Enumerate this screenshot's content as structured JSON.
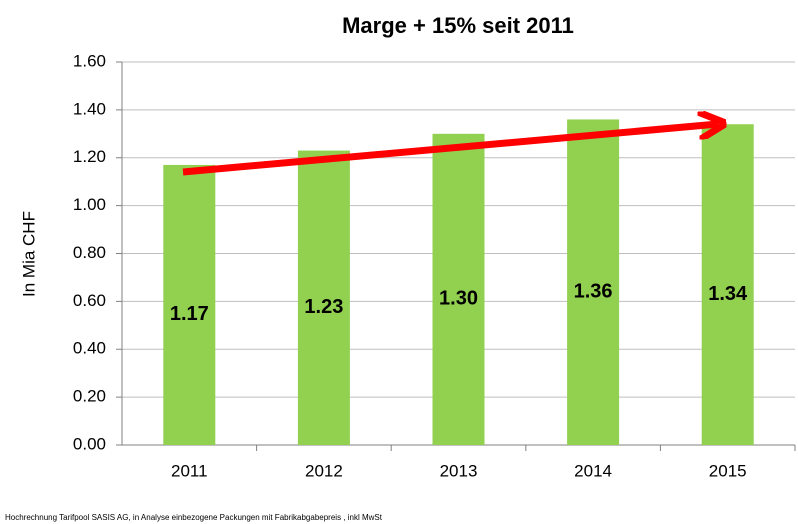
{
  "chart_data": {
    "type": "bar",
    "title": "Marge + 15% seit 2011",
    "y_label": "In Mia CHF",
    "categories": [
      "2011",
      "2012",
      "2013",
      "2014",
      "2015"
    ],
    "values": [
      1.17,
      1.23,
      1.3,
      1.36,
      1.34
    ],
    "value_labels": [
      "1.17",
      "1.23",
      "1.30",
      "1.36",
      "1.34"
    ],
    "color": "#92d050",
    "ylim": [
      0,
      1.6
    ],
    "yticks": [
      {
        "value": 0,
        "label": "0.00"
      },
      {
        "value": 0.2,
        "label": "0.20"
      },
      {
        "value": 0.4,
        "label": "0.40"
      },
      {
        "value": 0.6,
        "label": "0.60"
      },
      {
        "value": 0.8,
        "label": "0.80"
      },
      {
        "value": 1,
        "label": "1.00"
      },
      {
        "value": 1.2,
        "label": "1.20"
      },
      {
        "value": 1.4,
        "label": "1.40"
      },
      {
        "value": 1.6,
        "label": "1.60"
      }
    ],
    "grid": true,
    "footnote": "Hochrechnung Tarifpool SASIS AG, in Analyse einbezogene Packungen mit Fabrikabgabepreis , inkl MwSt"
  }
}
